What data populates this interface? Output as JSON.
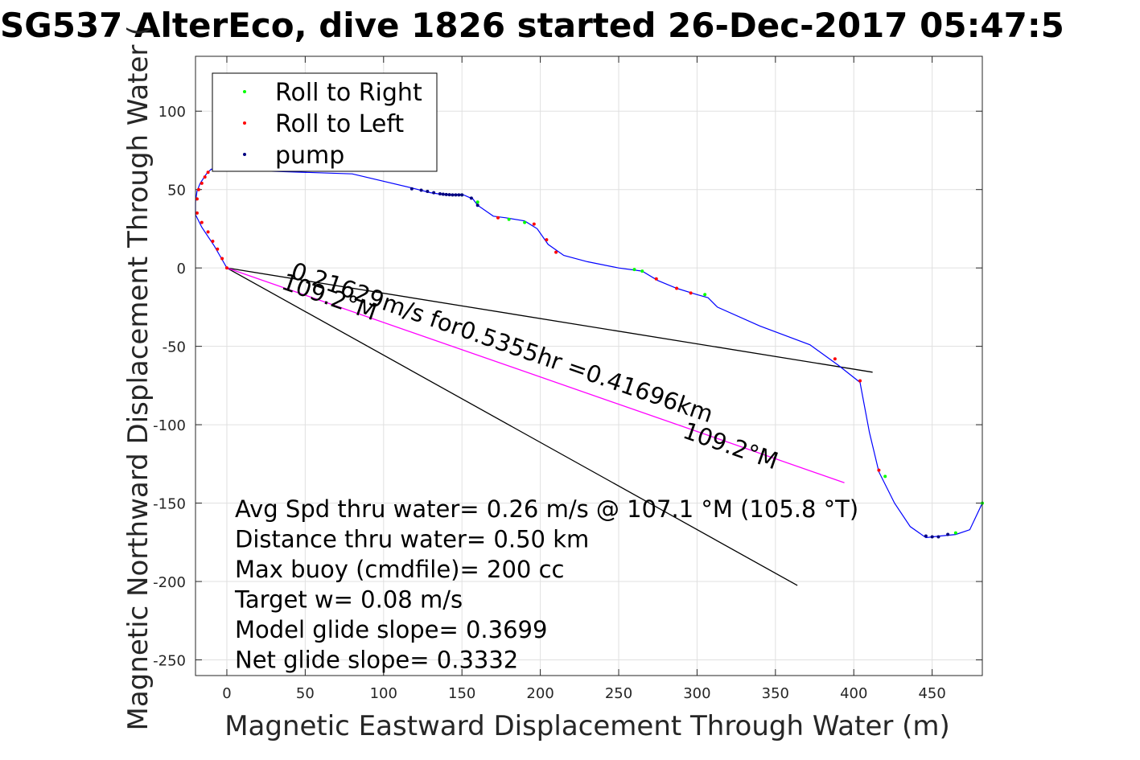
{
  "chart_data": {
    "type": "line",
    "title": "SG537 AlterEco, dive 1826 started 26-Dec-2017 05:47:5",
    "xlabel": "Magnetic Eastward Displacement Through Water (m)",
    "ylabel": "Magnetic Northward Displacement Through Water (",
    "xlim": [
      -20,
      482
    ],
    "ylim": [
      -260,
      135
    ],
    "xticks": [
      0,
      50,
      100,
      150,
      200,
      250,
      300,
      350,
      400,
      450
    ],
    "yticks": [
      100,
      50,
      0,
      -50,
      -100,
      -150,
      -200,
      -250
    ],
    "grid": true,
    "legend_placement": "top-left",
    "legend": [
      {
        "label": "Roll to Right",
        "color": "#00ff00"
      },
      {
        "label": "Roll to Left",
        "color": "#ff0000"
      },
      {
        "label": "pump",
        "color": "#000080"
      }
    ],
    "track": {
      "color": "#0000ff",
      "x": [
        0,
        -4,
        -8,
        -12,
        -16,
        -20,
        -20,
        -19,
        -17,
        -15,
        -13,
        -11,
        -10,
        80,
        118,
        130,
        140,
        150,
        157,
        160,
        170,
        178,
        190,
        198,
        205,
        215,
        230,
        250,
        265,
        275,
        287,
        300,
        307,
        313,
        340,
        372,
        390,
        404,
        410,
        416,
        426,
        436,
        446,
        455,
        465,
        474,
        482
      ],
      "y": [
        0,
        7,
        14,
        20,
        26,
        34,
        42,
        49,
        54,
        57,
        60,
        62,
        63,
        60,
        51,
        48,
        46.5,
        47,
        44,
        40,
        33,
        32,
        30,
        25,
        15,
        8,
        4,
        0,
        -2,
        -8,
        -13,
        -17,
        -19,
        -25,
        -37,
        -49,
        -62,
        -73,
        -105,
        -130,
        -150,
        -165,
        -172,
        -171,
        -170,
        -167,
        -150
      ]
    },
    "roll_right_points": {
      "x": [
        150,
        160,
        180,
        190,
        260,
        265,
        305,
        420,
        465,
        482
      ],
      "y": [
        46.6,
        42,
        31,
        29,
        -1,
        -2,
        -17,
        -133,
        -169,
        -150
      ]
    },
    "roll_left_points": {
      "x": [
        0,
        -3,
        -6,
        -9,
        -12,
        -16,
        -19,
        -19,
        -18,
        -16,
        -14,
        -12,
        173,
        196,
        204,
        210,
        274,
        287,
        296,
        388,
        404,
        416
      ],
      "y": [
        0,
        6,
        12,
        17,
        23,
        29,
        35,
        44,
        50,
        54,
        58,
        61,
        32,
        28,
        18,
        10,
        -7,
        -13,
        -16,
        -58,
        -72,
        -129
      ]
    },
    "pump_points": {
      "x": [
        118,
        124,
        128,
        132,
        136,
        138,
        140,
        142,
        144,
        146,
        148,
        150,
        156,
        160,
        446,
        450,
        454,
        460
      ],
      "y": [
        50.5,
        49.6,
        48.8,
        48,
        47.3,
        47,
        46.8,
        46.7,
        46.6,
        46.6,
        46.6,
        46.6,
        44.5,
        40,
        -171,
        -171.5,
        -171.5,
        -170
      ]
    },
    "lines": [
      {
        "x": [
          0,
          412
        ],
        "y": [
          0,
          -66.5
        ],
        "color": "#000000"
      },
      {
        "x": [
          0,
          364
        ],
        "y": [
          0,
          -202.5
        ],
        "color": "#000000"
      },
      {
        "x": [
          0,
          394
        ],
        "y": [
          0,
          -137
        ],
        "color": "#ff00ff"
      }
    ],
    "annotations": [
      {
        "text": "0.21629m/s for0.5355hr =0.41696km",
        "x": 40,
        "y": -6,
        "angle": -19.1
      },
      {
        "text": "109.2°M",
        "x": 34,
        "y": -13,
        "angle": -19.1
      },
      {
        "text": "109.2°M",
        "x": 290,
        "y": -108,
        "angle": -19.1
      }
    ],
    "stats": [
      "Avg Spd thru water=  0.26 m/s @ 107.1 °M (105.8 °T)",
      "Distance thru water=  0.50 km",
      "Max buoy (cmdfile)= 200 cc",
      "Target w= 0.08 m/s",
      "Model glide slope= 0.3699",
      "Net glide slope= 0.3332"
    ]
  }
}
